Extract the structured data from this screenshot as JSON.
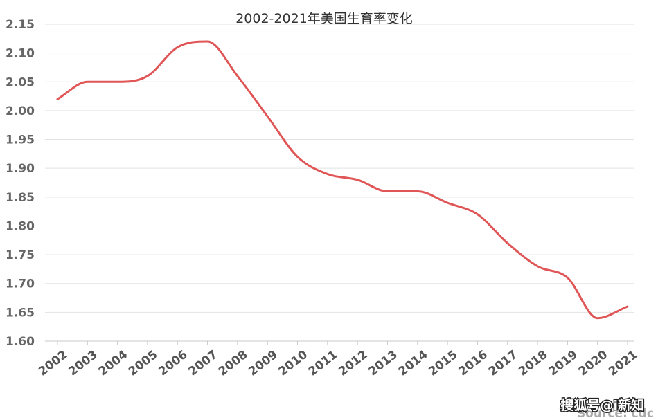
{
  "chart_data": {
    "type": "line",
    "title": "2002-2021年美国生育率变化",
    "xlabel": "",
    "ylabel": "",
    "x": [
      "2002",
      "2003",
      "2004",
      "2005",
      "2006",
      "2007",
      "2008",
      "2009",
      "2010",
      "2011",
      "2012",
      "2013",
      "2014",
      "2015",
      "2016",
      "2017",
      "2018",
      "2019",
      "2020",
      "2021"
    ],
    "series": [
      {
        "values": [
          2.02,
          2.05,
          2.05,
          2.06,
          2.11,
          2.12,
          2.06,
          1.99,
          1.92,
          1.89,
          1.88,
          1.86,
          1.86,
          1.84,
          1.82,
          1.77,
          1.73,
          1.71,
          1.64,
          1.66
        ],
        "color": "#e05555"
      }
    ],
    "yticks": [
      "2.15",
      "2.10",
      "2.05",
      "2.00",
      "1.95",
      "1.90",
      "1.85",
      "1.80",
      "1.75",
      "1.70",
      "1.65",
      "1.60"
    ],
    "ylim": [
      1.6,
      2.15
    ],
    "grid": true,
    "legend": "none"
  },
  "watermark": "搜狐号@i新知",
  "source_text": "Source: cdc"
}
